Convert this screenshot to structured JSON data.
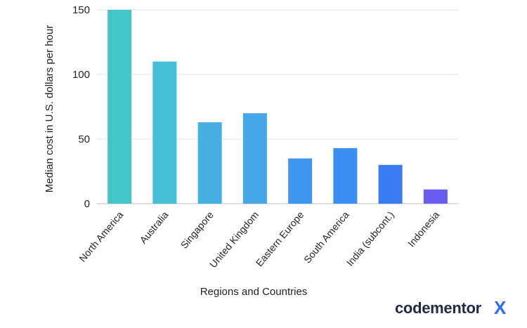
{
  "chart_data": {
    "type": "bar",
    "categories": [
      "North America",
      "Australia",
      "Singapore",
      "United Kingdom",
      "Eastern Europe",
      "South America",
      "India (subcont.)",
      "Indonesia"
    ],
    "values": [
      150,
      110,
      63,
      70,
      35,
      43,
      30,
      11
    ],
    "bar_colors": [
      "#44c6c8",
      "#45c0d6",
      "#45b0e0",
      "#45a7e8",
      "#4097f0",
      "#3d8ef2",
      "#3a7bf0",
      "#6a5cf0"
    ],
    "xlabel": "Regions and Countries",
    "ylabel": "Median cost in U.S. dollars per hour",
    "ylim": [
      0,
      150
    ],
    "yticks": [
      0,
      50,
      100,
      150
    ],
    "grid": true,
    "legend": "none"
  },
  "brand": {
    "name": "codementor",
    "mark": "X"
  }
}
